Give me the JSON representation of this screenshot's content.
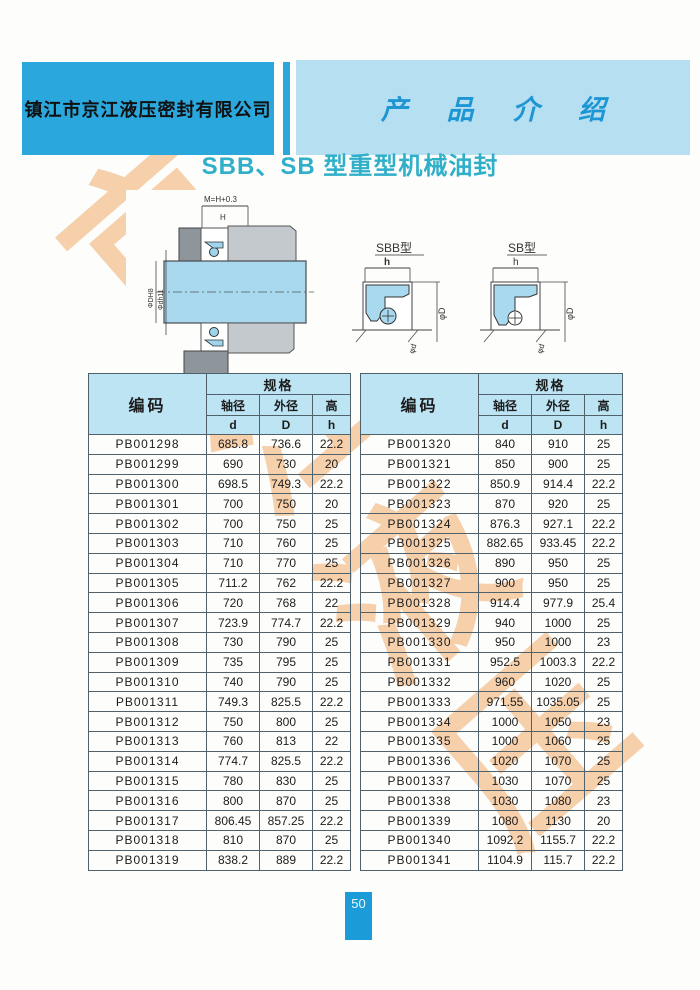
{
  "header": {
    "company": "镇江市京江液压密封有限公司",
    "section": "产 品 介 绍"
  },
  "page": {
    "title": "SBB、SB 型重型机械油封",
    "number": "50",
    "watermark": [
      "京",
      "江",
      "液",
      "压"
    ]
  },
  "colors": {
    "banner_dark": "#2aa8de",
    "banner_light": "#b6dff2",
    "title_teal": "#2fafc9",
    "table_header_bg": "#bde4f3",
    "watermark_orange": "#f6cba3",
    "shaft_blue": "#a8d9ef",
    "badge_blue": "#1b9cd9"
  },
  "diagram": {
    "assembly": {
      "label_top": "M=H+0.3",
      "dim_h": "H",
      "dim_left_outer": "ΦDH8",
      "dim_left_inner": "Φdh11"
    },
    "sbb": {
      "label": "SBB型",
      "dim_top": "h",
      "dim_right": "φD",
      "dim_bottom": "φd"
    },
    "sb": {
      "label": "SB型",
      "dim_top": "h",
      "dim_right": "φD",
      "dim_bottom": "φd"
    }
  },
  "table": {
    "headers": {
      "code": "编码",
      "spec": "规格",
      "shaft": "轴径",
      "outer": "外径",
      "height": "高",
      "d": "d",
      "D": "D",
      "h": "h"
    },
    "left_rows": [
      {
        "code": "PB001298",
        "d": "685.8",
        "D": "736.6",
        "h": "22.2"
      },
      {
        "code": "PB001299",
        "d": "690",
        "D": "730",
        "h": "20"
      },
      {
        "code": "PB001300",
        "d": "698.5",
        "D": "749.3",
        "h": "22.2"
      },
      {
        "code": "PB001301",
        "d": "700",
        "D": "750",
        "h": "20"
      },
      {
        "code": "PB001302",
        "d": "700",
        "D": "750",
        "h": "25"
      },
      {
        "code": "PB001303",
        "d": "710",
        "D": "760",
        "h": "25"
      },
      {
        "code": "PB001304",
        "d": "710",
        "D": "770",
        "h": "25"
      },
      {
        "code": "PB001305",
        "d": "711.2",
        "D": "762",
        "h": "22.2"
      },
      {
        "code": "PB001306",
        "d": "720",
        "D": "768",
        "h": "22"
      },
      {
        "code": "PB001307",
        "d": "723.9",
        "D": "774.7",
        "h": "22.2"
      },
      {
        "code": "PB001308",
        "d": "730",
        "D": "790",
        "h": "25"
      },
      {
        "code": "PB001309",
        "d": "735",
        "D": "795",
        "h": "25"
      },
      {
        "code": "PB001310",
        "d": "740",
        "D": "790",
        "h": "25"
      },
      {
        "code": "PB001311",
        "d": "749.3",
        "D": "825.5",
        "h": "22.2"
      },
      {
        "code": "PB001312",
        "d": "750",
        "D": "800",
        "h": "25"
      },
      {
        "code": "PB001313",
        "d": "760",
        "D": "813",
        "h": "22"
      },
      {
        "code": "PB001314",
        "d": "774.7",
        "D": "825.5",
        "h": "22.2"
      },
      {
        "code": "PB001315",
        "d": "780",
        "D": "830",
        "h": "25"
      },
      {
        "code": "PB001316",
        "d": "800",
        "D": "870",
        "h": "25"
      },
      {
        "code": "PB001317",
        "d": "806.45",
        "D": "857.25",
        "h": "22.2"
      },
      {
        "code": "PB001318",
        "d": "810",
        "D": "870",
        "h": "25"
      },
      {
        "code": "PB001319",
        "d": "838.2",
        "D": "889",
        "h": "22.2"
      }
    ],
    "right_rows": [
      {
        "code": "PB001320",
        "d": "840",
        "D": "910",
        "h": "25"
      },
      {
        "code": "PB001321",
        "d": "850",
        "D": "900",
        "h": "25"
      },
      {
        "code": "PB001322",
        "d": "850.9",
        "D": "914.4",
        "h": "22.2"
      },
      {
        "code": "PB001323",
        "d": "870",
        "D": "920",
        "h": "25"
      },
      {
        "code": "PB001324",
        "d": "876.3",
        "D": "927.1",
        "h": "22.2"
      },
      {
        "code": "PB001325",
        "d": "882.65",
        "D": "933.45",
        "h": "22.2"
      },
      {
        "code": "PB001326",
        "d": "890",
        "D": "950",
        "h": "25"
      },
      {
        "code": "PB001327",
        "d": "900",
        "D": "950",
        "h": "25"
      },
      {
        "code": "PB001328",
        "d": "914.4",
        "D": "977.9",
        "h": "25.4"
      },
      {
        "code": "PB001329",
        "d": "940",
        "D": "1000",
        "h": "25"
      },
      {
        "code": "PB001330",
        "d": "950",
        "D": "1000",
        "h": "23"
      },
      {
        "code": "PB001331",
        "d": "952.5",
        "D": "1003.3",
        "h": "22.2"
      },
      {
        "code": "PB001332",
        "d": "960",
        "D": "1020",
        "h": "25"
      },
      {
        "code": "PB001333",
        "d": "971.55",
        "D": "1035.05",
        "h": "25"
      },
      {
        "code": "PB001334",
        "d": "1000",
        "D": "1050",
        "h": "23"
      },
      {
        "code": "PB001335",
        "d": "1000",
        "D": "1060",
        "h": "25"
      },
      {
        "code": "PB001336",
        "d": "1020",
        "D": "1070",
        "h": "25"
      },
      {
        "code": "PB001337",
        "d": "1030",
        "D": "1070",
        "h": "25"
      },
      {
        "code": "PB001338",
        "d": "1030",
        "D": "1080",
        "h": "23"
      },
      {
        "code": "PB001339",
        "d": "1080",
        "D": "1130",
        "h": "20"
      },
      {
        "code": "PB001340",
        "d": "1092.2",
        "D": "1155.7",
        "h": "22.2"
      },
      {
        "code": "PB001341",
        "d": "1104.9",
        "D": "115.7",
        "h": "22.2"
      }
    ]
  }
}
